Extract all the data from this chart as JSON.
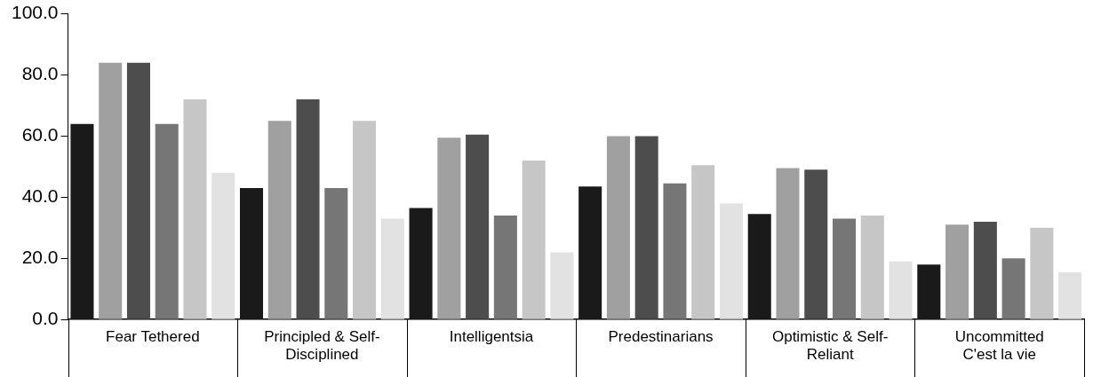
{
  "chart_data": {
    "type": "bar",
    "categories": [
      "Fear Tethered",
      "Principled & Self-Disciplined",
      "Intelligentsia",
      "Predestinarians",
      "Optimistic & Self-Reliant",
      "Uncommitted C'est la vie"
    ],
    "series": [
      {
        "color": "#1a1a1a",
        "values": [
          64,
          43,
          36.5,
          43.5,
          34.5,
          18
        ]
      },
      {
        "color": "#a0a0a0",
        "values": [
          84,
          65,
          59.5,
          60,
          49.5,
          31
        ]
      },
      {
        "color": "#4d4d4d",
        "values": [
          84,
          72,
          60.5,
          60,
          49,
          32
        ]
      },
      {
        "color": "#767676",
        "values": [
          64,
          43,
          34,
          44.5,
          33,
          20
        ]
      },
      {
        "color": "#c6c6c6",
        "values": [
          72,
          65,
          52,
          50.5,
          34,
          30
        ]
      },
      {
        "color": "#e2e2e2",
        "values": [
          48,
          33,
          22,
          38,
          19,
          15.5
        ]
      }
    ],
    "ylim": [
      0,
      100
    ],
    "yticks": [
      {
        "value": 0,
        "label": "0.0"
      },
      {
        "value": 20,
        "label": "20.0"
      },
      {
        "value": 40,
        "label": "40.0"
      },
      {
        "value": 60,
        "label": "60.0"
      },
      {
        "value": 80,
        "label": "80.0"
      },
      {
        "value": 100,
        "label": "100.0"
      }
    ],
    "grid": false,
    "legend": false
  }
}
